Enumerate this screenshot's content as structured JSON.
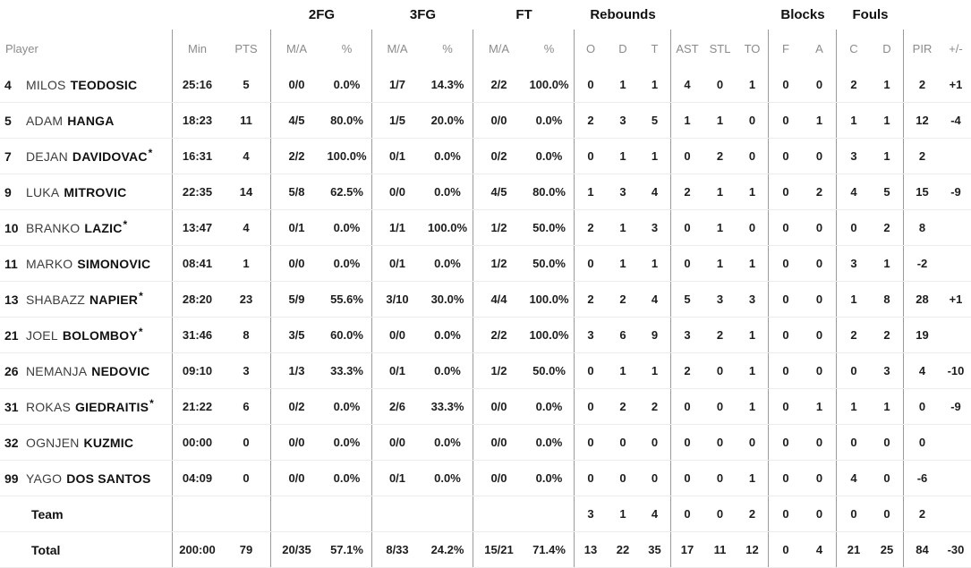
{
  "table": {
    "group_headers": [
      "2FG",
      "3FG",
      "FT",
      "Rebounds",
      "Blocks",
      "Fouls"
    ],
    "columns": [
      "Player",
      "Min",
      "PTS",
      "M/A",
      "%",
      "M/A",
      "%",
      "M/A",
      "%",
      "O",
      "D",
      "T",
      "AST",
      "STL",
      "TO",
      "F",
      "A",
      "C",
      "D",
      "PIR",
      "+/-"
    ],
    "starter_mark": "*",
    "colors": {
      "vertical_line": "#9b9b9b",
      "row_line": "#ececec",
      "header_text": "#8b8b8b",
      "text": "#1d1d1d"
    },
    "rows": [
      {
        "num": "4",
        "first": "MILOS",
        "last": "TEODOSIC",
        "starter": false,
        "min": "25:16",
        "pts": "5",
        "fg2": "0/0",
        "fg2p": "0.0%",
        "fg3": "1/7",
        "fg3p": "14.3%",
        "ft": "2/2",
        "ftp": "100.0%",
        "o": "0",
        "d": "1",
        "t": "1",
        "ast": "4",
        "stl": "0",
        "to": "1",
        "bf": "0",
        "ba": "0",
        "fc": "2",
        "fd": "1",
        "pir": "2",
        "pm": "+1"
      },
      {
        "num": "5",
        "first": "ADAM",
        "last": "HANGA",
        "starter": false,
        "min": "18:23",
        "pts": "11",
        "fg2": "4/5",
        "fg2p": "80.0%",
        "fg3": "1/5",
        "fg3p": "20.0%",
        "ft": "0/0",
        "ftp": "0.0%",
        "o": "2",
        "d": "3",
        "t": "5",
        "ast": "1",
        "stl": "1",
        "to": "0",
        "bf": "0",
        "ba": "1",
        "fc": "1",
        "fd": "1",
        "pir": "12",
        "pm": "-4"
      },
      {
        "num": "7",
        "first": "DEJAN",
        "last": "DAVIDOVAC",
        "starter": true,
        "min": "16:31",
        "pts": "4",
        "fg2": "2/2",
        "fg2p": "100.0%",
        "fg3": "0/1",
        "fg3p": "0.0%",
        "ft": "0/2",
        "ftp": "0.0%",
        "o": "0",
        "d": "1",
        "t": "1",
        "ast": "0",
        "stl": "2",
        "to": "0",
        "bf": "0",
        "ba": "0",
        "fc": "3",
        "fd": "1",
        "pir": "2",
        "pm": ""
      },
      {
        "num": "9",
        "first": "LUKA",
        "last": "MITROVIC",
        "starter": false,
        "min": "22:35",
        "pts": "14",
        "fg2": "5/8",
        "fg2p": "62.5%",
        "fg3": "0/0",
        "fg3p": "0.0%",
        "ft": "4/5",
        "ftp": "80.0%",
        "o": "1",
        "d": "3",
        "t": "4",
        "ast": "2",
        "stl": "1",
        "to": "1",
        "bf": "0",
        "ba": "2",
        "fc": "4",
        "fd": "5",
        "pir": "15",
        "pm": "-9"
      },
      {
        "num": "10",
        "first": "BRANKO",
        "last": "LAZIC",
        "starter": true,
        "min": "13:47",
        "pts": "4",
        "fg2": "0/1",
        "fg2p": "0.0%",
        "fg3": "1/1",
        "fg3p": "100.0%",
        "ft": "1/2",
        "ftp": "50.0%",
        "o": "2",
        "d": "1",
        "t": "3",
        "ast": "0",
        "stl": "1",
        "to": "0",
        "bf": "0",
        "ba": "0",
        "fc": "0",
        "fd": "2",
        "pir": "8",
        "pm": ""
      },
      {
        "num": "11",
        "first": "MARKO",
        "last": "SIMONOVIC",
        "starter": false,
        "min": "08:41",
        "pts": "1",
        "fg2": "0/0",
        "fg2p": "0.0%",
        "fg3": "0/1",
        "fg3p": "0.0%",
        "ft": "1/2",
        "ftp": "50.0%",
        "o": "0",
        "d": "1",
        "t": "1",
        "ast": "0",
        "stl": "1",
        "to": "1",
        "bf": "0",
        "ba": "0",
        "fc": "3",
        "fd": "1",
        "pir": "-2",
        "pm": ""
      },
      {
        "num": "13",
        "first": "SHABAZZ",
        "last": "NAPIER",
        "starter": true,
        "min": "28:20",
        "pts": "23",
        "fg2": "5/9",
        "fg2p": "55.6%",
        "fg3": "3/10",
        "fg3p": "30.0%",
        "ft": "4/4",
        "ftp": "100.0%",
        "o": "2",
        "d": "2",
        "t": "4",
        "ast": "5",
        "stl": "3",
        "to": "3",
        "bf": "0",
        "ba": "0",
        "fc": "1",
        "fd": "8",
        "pir": "28",
        "pm": "+1"
      },
      {
        "num": "21",
        "first": "JOEL",
        "last": "BOLOMBOY",
        "starter": true,
        "min": "31:46",
        "pts": "8",
        "fg2": "3/5",
        "fg2p": "60.0%",
        "fg3": "0/0",
        "fg3p": "0.0%",
        "ft": "2/2",
        "ftp": "100.0%",
        "o": "3",
        "d": "6",
        "t": "9",
        "ast": "3",
        "stl": "2",
        "to": "1",
        "bf": "0",
        "ba": "0",
        "fc": "2",
        "fd": "2",
        "pir": "19",
        "pm": ""
      },
      {
        "num": "26",
        "first": "NEMANJA",
        "last": "NEDOVIC",
        "starter": false,
        "min": "09:10",
        "pts": "3",
        "fg2": "1/3",
        "fg2p": "33.3%",
        "fg3": "0/1",
        "fg3p": "0.0%",
        "ft": "1/2",
        "ftp": "50.0%",
        "o": "0",
        "d": "1",
        "t": "1",
        "ast": "2",
        "stl": "0",
        "to": "1",
        "bf": "0",
        "ba": "0",
        "fc": "0",
        "fd": "3",
        "pir": "4",
        "pm": "-10"
      },
      {
        "num": "31",
        "first": "ROKAS",
        "last": "GIEDRAITIS",
        "starter": true,
        "min": "21:22",
        "pts": "6",
        "fg2": "0/2",
        "fg2p": "0.0%",
        "fg3": "2/6",
        "fg3p": "33.3%",
        "ft": "0/0",
        "ftp": "0.0%",
        "o": "0",
        "d": "2",
        "t": "2",
        "ast": "0",
        "stl": "0",
        "to": "1",
        "bf": "0",
        "ba": "1",
        "fc": "1",
        "fd": "1",
        "pir": "0",
        "pm": "-9"
      },
      {
        "num": "32",
        "first": "OGNJEN",
        "last": "KUZMIC",
        "starter": false,
        "min": "00:00",
        "pts": "0",
        "fg2": "0/0",
        "fg2p": "0.0%",
        "fg3": "0/0",
        "fg3p": "0.0%",
        "ft": "0/0",
        "ftp": "0.0%",
        "o": "0",
        "d": "0",
        "t": "0",
        "ast": "0",
        "stl": "0",
        "to": "0",
        "bf": "0",
        "ba": "0",
        "fc": "0",
        "fd": "0",
        "pir": "0",
        "pm": ""
      },
      {
        "num": "99",
        "first": "YAGO",
        "last": "DOS SANTOS",
        "starter": false,
        "min": "04:09",
        "pts": "0",
        "fg2": "0/0",
        "fg2p": "0.0%",
        "fg3": "0/1",
        "fg3p": "0.0%",
        "ft": "0/0",
        "ftp": "0.0%",
        "o": "0",
        "d": "0",
        "t": "0",
        "ast": "0",
        "stl": "0",
        "to": "1",
        "bf": "0",
        "ba": "0",
        "fc": "4",
        "fd": "0",
        "pir": "-6",
        "pm": ""
      },
      {
        "label": "Team",
        "min": "",
        "pts": "",
        "fg2": "",
        "fg2p": "",
        "fg3": "",
        "fg3p": "",
        "ft": "",
        "ftp": "",
        "o": "3",
        "d": "1",
        "t": "4",
        "ast": "0",
        "stl": "0",
        "to": "2",
        "bf": "0",
        "ba": "0",
        "fc": "0",
        "fd": "0",
        "pir": "2",
        "pm": ""
      },
      {
        "label": "Total",
        "min": "200:00",
        "pts": "79",
        "fg2": "20/35",
        "fg2p": "57.1%",
        "fg3": "8/33",
        "fg3p": "24.2%",
        "ft": "15/21",
        "ftp": "71.4%",
        "o": "13",
        "d": "22",
        "t": "35",
        "ast": "17",
        "stl": "11",
        "to": "12",
        "bf": "0",
        "ba": "4",
        "fc": "21",
        "fd": "25",
        "pir": "84",
        "pm": "-30"
      }
    ]
  }
}
